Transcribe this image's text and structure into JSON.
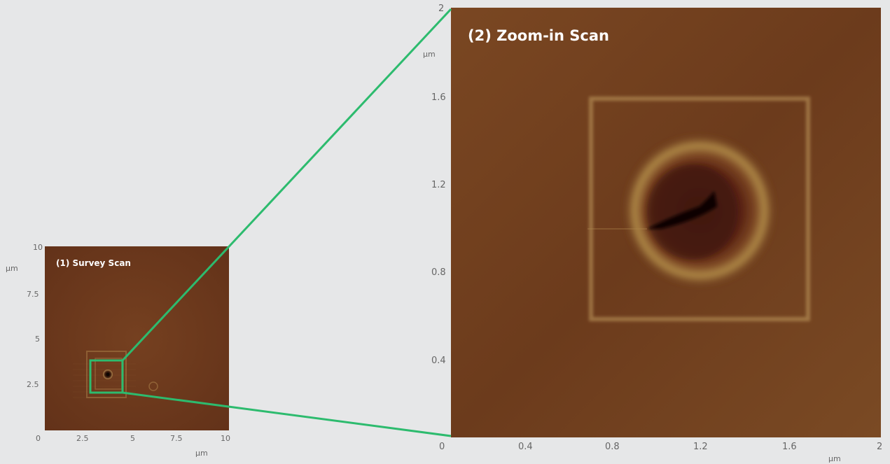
{
  "survey": {
    "title": "(1) Survey Scan",
    "x_ticks": [
      "0",
      "2.5",
      "5",
      "7.5",
      "10"
    ],
    "y_ticks": [
      "10",
      "7.5",
      "5",
      "2.5"
    ],
    "x_unit": "µm",
    "y_unit": "µm"
  },
  "zoom": {
    "title": "(2) Zoom-in Scan",
    "x_ticks": [
      "0",
      "0.4",
      "0.8",
      "1.2",
      "1.6",
      "2"
    ],
    "y_ticks": [
      "2",
      "1.6",
      "1.2",
      "0.8",
      "0.4"
    ],
    "x_unit": "µm",
    "y_unit": "µm"
  },
  "colors": {
    "background": "#e6e7e8",
    "connector": "#2dbb6e",
    "scan_base": "#6e3a1b"
  }
}
